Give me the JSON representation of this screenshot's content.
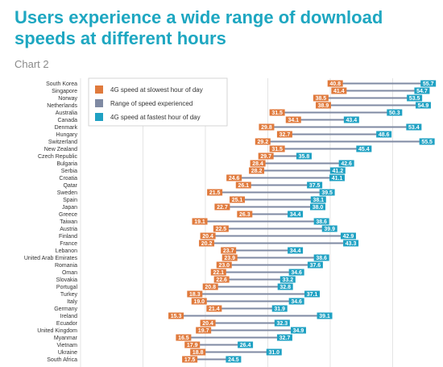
{
  "title": "Users experience a wide range of download speeds at different hours",
  "subtitle": "Chart 2",
  "colors": {
    "slowest": "#e07a3c",
    "range": "#7f8aa3",
    "fastest": "#1fa1c3",
    "title": "#1ea7c1",
    "grid": "#dddddd"
  },
  "legend": {
    "slowest": "4G speed at slowest hour of day",
    "range": "Range of speed experienced",
    "fastest": "4G speed at fastest hour of day"
  },
  "chart_data": {
    "type": "bar",
    "subtype": "range-dumbbell",
    "title": "Users experience a wide range of download speeds at different hours",
    "subtitle": "Chart 2",
    "xlim": [
      0,
      60
    ],
    "grid": true,
    "legend_position": "top-left",
    "series": [
      {
        "name": "4G speed at slowest hour of day",
        "key": "slowest"
      },
      {
        "name": "Range of speed experienced",
        "key": "range"
      },
      {
        "name": "4G speed at fastest hour of day",
        "key": "fastest"
      }
    ],
    "rows": [
      {
        "country": "South Korea",
        "slowest": 40.8,
        "fastest": 55.7
      },
      {
        "country": "Singapore",
        "slowest": 41.4,
        "fastest": 54.7
      },
      {
        "country": "Norway",
        "slowest": 38.5,
        "fastest": 53.5
      },
      {
        "country": "Netherlands",
        "slowest": 38.9,
        "fastest": 54.9
      },
      {
        "country": "Australia",
        "slowest": 31.5,
        "fastest": 50.3
      },
      {
        "country": "Canada",
        "slowest": 34.1,
        "fastest": 43.4
      },
      {
        "country": "Denmark",
        "slowest": 29.8,
        "fastest": 53.4
      },
      {
        "country": "Hungary",
        "slowest": 32.7,
        "fastest": 48.6
      },
      {
        "country": "Switzerland",
        "slowest": 29.2,
        "fastest": 55.5
      },
      {
        "country": "New Zealand",
        "slowest": 31.5,
        "fastest": 45.4
      },
      {
        "country": "Czech Republic",
        "slowest": 29.7,
        "fastest": 35.8
      },
      {
        "country": "Bulgaria",
        "slowest": 28.4,
        "fastest": 42.6
      },
      {
        "country": "Serbia",
        "slowest": 28.2,
        "fastest": 41.2
      },
      {
        "country": "Croatia",
        "slowest": 24.6,
        "fastest": 41.1
      },
      {
        "country": "Qatar",
        "slowest": 26.1,
        "fastest": 37.5
      },
      {
        "country": "Sweden",
        "slowest": 21.5,
        "fastest": 39.5
      },
      {
        "country": "Spain",
        "slowest": 25.1,
        "fastest": 38.1
      },
      {
        "country": "Japan",
        "slowest": 22.7,
        "fastest": 38.0
      },
      {
        "country": "Greece",
        "slowest": 26.3,
        "fastest": 34.4
      },
      {
        "country": "Taiwan",
        "slowest": 19.1,
        "fastest": 38.6
      },
      {
        "country": "Austria",
        "slowest": 22.5,
        "fastest": 39.9
      },
      {
        "country": "Finland",
        "slowest": 20.4,
        "fastest": 42.9
      },
      {
        "country": "France",
        "slowest": 20.2,
        "fastest": 43.3
      },
      {
        "country": "Lebanon",
        "slowest": 23.7,
        "fastest": 34.4
      },
      {
        "country": "United Arab Emirates",
        "slowest": 23.9,
        "fastest": 38.6
      },
      {
        "country": "Romania",
        "slowest": 23.0,
        "fastest": 37.6
      },
      {
        "country": "Oman",
        "slowest": 22.1,
        "fastest": 34.6
      },
      {
        "country": "Slovakia",
        "slowest": 22.6,
        "fastest": 33.2
      },
      {
        "country": "Portugal",
        "slowest": 20.8,
        "fastest": 32.8
      },
      {
        "country": "Turkey",
        "slowest": 18.3,
        "fastest": 37.1
      },
      {
        "country": "Italy",
        "slowest": 19.0,
        "fastest": 34.6
      },
      {
        "country": "Germany",
        "slowest": 21.4,
        "fastest": 31.9
      },
      {
        "country": "Ireland",
        "slowest": 15.3,
        "fastest": 39.1
      },
      {
        "country": "Ecuador",
        "slowest": 20.4,
        "fastest": 32.3
      },
      {
        "country": "United Kingdom",
        "slowest": 19.7,
        "fastest": 34.9
      },
      {
        "country": "Myanmar",
        "slowest": 16.5,
        "fastest": 32.7
      },
      {
        "country": "Vietnam",
        "slowest": 17.9,
        "fastest": 26.4
      },
      {
        "country": "Ukraine",
        "slowest": 18.8,
        "fastest": 31.0
      },
      {
        "country": "South Africa",
        "slowest": 17.5,
        "fastest": 24.5
      }
    ]
  }
}
